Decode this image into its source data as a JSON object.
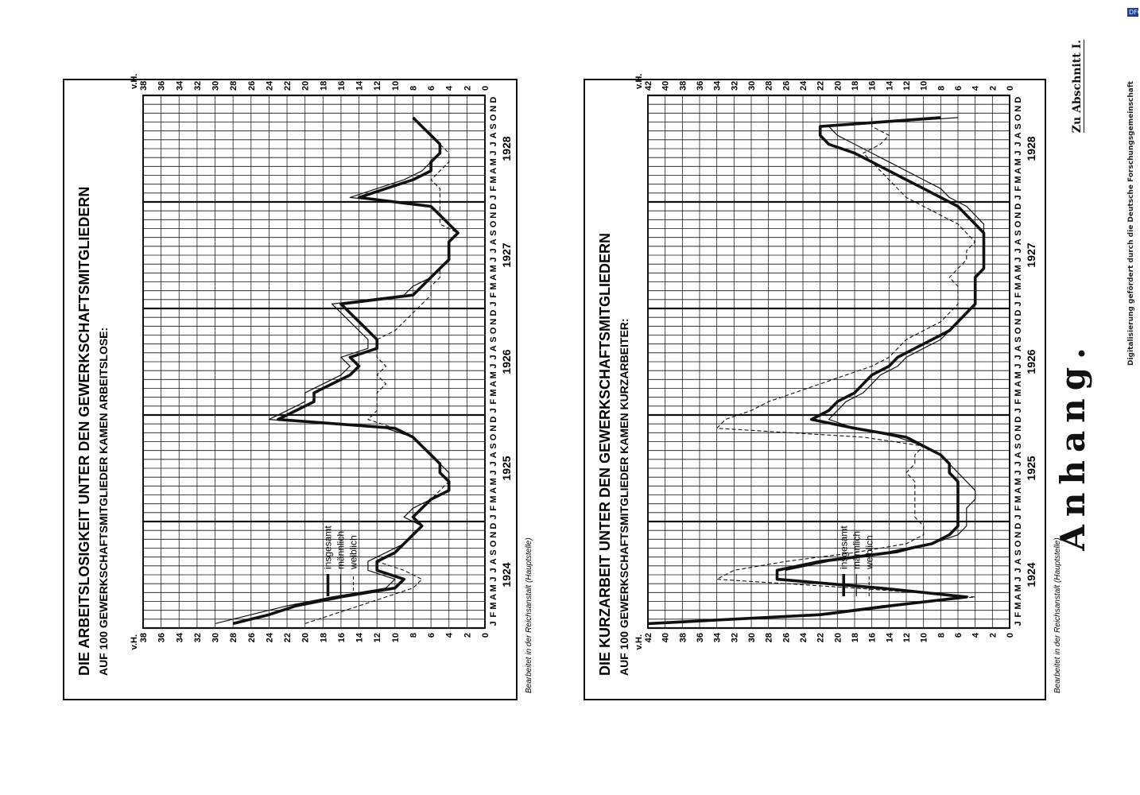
{
  "page": {
    "header_title": "Anhang.",
    "header_ref": "Zu Abschnitt I.",
    "side_note": "Digitalisierung gefördert durch die Deutsche Forschungsgemeinschaft",
    "dfg_badge": "DFG"
  },
  "chart_data": [
    {
      "type": "line",
      "title": "DIE ARBEITSLOSIGKEIT UNTER DEN GEWERKSCHAFTSMITGLIEDERN",
      "subtitle": "AUF 100 GEWERKSCHAFTSMITGLIEDER KAMEN ARBEITSLOSE:",
      "ylabel": "v.H.",
      "ylim": [
        0,
        38
      ],
      "yticks": [
        0,
        2,
        4,
        6,
        8,
        10,
        12,
        14,
        16,
        18,
        20,
        22,
        24,
        26,
        28,
        30,
        32,
        34,
        36,
        38
      ],
      "months": [
        "J",
        "F",
        "M",
        "A",
        "M",
        "J",
        "J",
        "A",
        "S",
        "O",
        "N",
        "D"
      ],
      "years": [
        "1924",
        "1925",
        "1926",
        "1927",
        "1928"
      ],
      "legend": [
        "insgesamt",
        "männlich",
        "weiblich"
      ],
      "source": "Bearbeitet in der Reichsanstalt (Hauptstelle)",
      "grid": true,
      "series": [
        {
          "name": "insgesamt",
          "style": "thick",
          "values": [
            28,
            24,
            21,
            16,
            10,
            9,
            12,
            12,
            10,
            9,
            8,
            7,
            8,
            7,
            6,
            4,
            4,
            5,
            5,
            6,
            7,
            8,
            10,
            23,
            21,
            19,
            19,
            17,
            15,
            14,
            15,
            12,
            12,
            13,
            14,
            15,
            16,
            8,
            7,
            6,
            5,
            4,
            4,
            4,
            3,
            4,
            5,
            6,
            14,
            11,
            8,
            6,
            6,
            5,
            5,
            6,
            7,
            8
          ]
        },
        {
          "name": "männlich",
          "style": "thin",
          "values": [
            30,
            26,
            22,
            17,
            11,
            10,
            13,
            13,
            11,
            9,
            8,
            7,
            9,
            8,
            6,
            4,
            4,
            4,
            5,
            6,
            7,
            8,
            11,
            24,
            22,
            20,
            20,
            18,
            16,
            15,
            16,
            13,
            13,
            14,
            15,
            16,
            17,
            9,
            8,
            6,
            5,
            4,
            4,
            4,
            3,
            4,
            5,
            6,
            15,
            12,
            9,
            7,
            6,
            5,
            5,
            6,
            7,
            8
          ]
        },
        {
          "name": "weiblich",
          "style": "dashed",
          "values": [
            20,
            17,
            14,
            11,
            8,
            7,
            9,
            12,
            10,
            9,
            8,
            7,
            8,
            7,
            6,
            5,
            4,
            4,
            5,
            6,
            7,
            8,
            10,
            13,
            12,
            12,
            12,
            11,
            12,
            11,
            12,
            12,
            12,
            10,
            9,
            8,
            7,
            6,
            6,
            5,
            5,
            4,
            4,
            4,
            3,
            5,
            5,
            5,
            5,
            5,
            6,
            5,
            4,
            4,
            5,
            6,
            7,
            8
          ]
        }
      ]
    },
    {
      "type": "line",
      "title": "DIE KURZARBEIT UNTER DEN GEWERKSCHAFTSMITGLIEDERN",
      "subtitle": "AUF 100 GEWERKSCHAFTSMITGLIEDER KAMEN KURZARBEITER:",
      "ylabel": "v.H.",
      "ylim": [
        0,
        42
      ],
      "yticks": [
        0,
        2,
        4,
        6,
        8,
        10,
        12,
        14,
        16,
        18,
        20,
        22,
        24,
        26,
        28,
        30,
        32,
        34,
        36,
        38,
        40,
        42
      ],
      "months": [
        "J",
        "F",
        "M",
        "A",
        "M",
        "J",
        "J",
        "A",
        "S",
        "O",
        "N",
        "D"
      ],
      "years": [
        "1924",
        "1925",
        "1926",
        "1927",
        "1928"
      ],
      "legend": [
        "insgesamt",
        "männlich",
        "weiblich"
      ],
      "source": "Bearbeitet in der Reichsanstalt (Hauptstelle)",
      "grid": true,
      "series": [
        {
          "name": "insgesamt",
          "style": "thick",
          "values": [
            42,
            22,
            14,
            5,
            15,
            27,
            27,
            22,
            14,
            9,
            7,
            6,
            6,
            6,
            6,
            6,
            6,
            7,
            7,
            8,
            10,
            12,
            18,
            23,
            21,
            20,
            18,
            17,
            16,
            14,
            13,
            11,
            9,
            7,
            6,
            5,
            4,
            4,
            4,
            4,
            3,
            3,
            3,
            3,
            3,
            4,
            5,
            6,
            8,
            10,
            12,
            14,
            16,
            18,
            21,
            22,
            22,
            8
          ]
        },
        {
          "name": "männlich",
          "style": "thin",
          "values": [
            40,
            21,
            13,
            5,
            14,
            26,
            26,
            21,
            13,
            9,
            6,
            5,
            5,
            5,
            4,
            4,
            5,
            6,
            7,
            8,
            10,
            13,
            18,
            21,
            20,
            19,
            17,
            16,
            15,
            13,
            12,
            10,
            8,
            7,
            6,
            5,
            4,
            4,
            4,
            4,
            3,
            3,
            3,
            3,
            3,
            3,
            4,
            5,
            7,
            8,
            10,
            12,
            14,
            16,
            18,
            20,
            21,
            6
          ]
        },
        {
          "name": "weiblich",
          "style": "dashed",
          "values": [
            40,
            22,
            15,
            4,
            18,
            34,
            32,
            26,
            18,
            12,
            10,
            10,
            11,
            11,
            11,
            11,
            11,
            12,
            11,
            11,
            10,
            17,
            34,
            33,
            30,
            28,
            25,
            22,
            19,
            16,
            14,
            13,
            12,
            10,
            8,
            7,
            6,
            6,
            6,
            7,
            6,
            5,
            5,
            4,
            5,
            6,
            8,
            10,
            12,
            13,
            14,
            15,
            16,
            17,
            15,
            14,
            16,
            16
          ]
        }
      ]
    }
  ]
}
